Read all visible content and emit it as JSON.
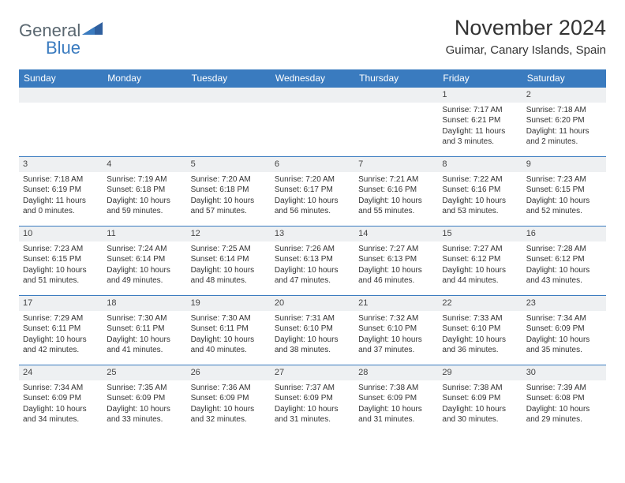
{
  "logo": {
    "text_general": "General",
    "text_blue": "Blue"
  },
  "title": "November 2024",
  "location": "Guimar, Canary Islands, Spain",
  "header_bg": "#3a7bbf",
  "header_fg": "#ffffff",
  "daynum_bg": "#eef0f2",
  "border_color": "#3a7bbf",
  "weekdays": [
    "Sunday",
    "Monday",
    "Tuesday",
    "Wednesday",
    "Thursday",
    "Friday",
    "Saturday"
  ],
  "weeks": [
    [
      {
        "day": "",
        "sunrise": "",
        "sunset": "",
        "daylight": ""
      },
      {
        "day": "",
        "sunrise": "",
        "sunset": "",
        "daylight": ""
      },
      {
        "day": "",
        "sunrise": "",
        "sunset": "",
        "daylight": ""
      },
      {
        "day": "",
        "sunrise": "",
        "sunset": "",
        "daylight": ""
      },
      {
        "day": "",
        "sunrise": "",
        "sunset": "",
        "daylight": ""
      },
      {
        "day": "1",
        "sunrise": "Sunrise: 7:17 AM",
        "sunset": "Sunset: 6:21 PM",
        "daylight": "Daylight: 11 hours and 3 minutes."
      },
      {
        "day": "2",
        "sunrise": "Sunrise: 7:18 AM",
        "sunset": "Sunset: 6:20 PM",
        "daylight": "Daylight: 11 hours and 2 minutes."
      }
    ],
    [
      {
        "day": "3",
        "sunrise": "Sunrise: 7:18 AM",
        "sunset": "Sunset: 6:19 PM",
        "daylight": "Daylight: 11 hours and 0 minutes."
      },
      {
        "day": "4",
        "sunrise": "Sunrise: 7:19 AM",
        "sunset": "Sunset: 6:18 PM",
        "daylight": "Daylight: 10 hours and 59 minutes."
      },
      {
        "day": "5",
        "sunrise": "Sunrise: 7:20 AM",
        "sunset": "Sunset: 6:18 PM",
        "daylight": "Daylight: 10 hours and 57 minutes."
      },
      {
        "day": "6",
        "sunrise": "Sunrise: 7:20 AM",
        "sunset": "Sunset: 6:17 PM",
        "daylight": "Daylight: 10 hours and 56 minutes."
      },
      {
        "day": "7",
        "sunrise": "Sunrise: 7:21 AM",
        "sunset": "Sunset: 6:16 PM",
        "daylight": "Daylight: 10 hours and 55 minutes."
      },
      {
        "day": "8",
        "sunrise": "Sunrise: 7:22 AM",
        "sunset": "Sunset: 6:16 PM",
        "daylight": "Daylight: 10 hours and 53 minutes."
      },
      {
        "day": "9",
        "sunrise": "Sunrise: 7:23 AM",
        "sunset": "Sunset: 6:15 PM",
        "daylight": "Daylight: 10 hours and 52 minutes."
      }
    ],
    [
      {
        "day": "10",
        "sunrise": "Sunrise: 7:23 AM",
        "sunset": "Sunset: 6:15 PM",
        "daylight": "Daylight: 10 hours and 51 minutes."
      },
      {
        "day": "11",
        "sunrise": "Sunrise: 7:24 AM",
        "sunset": "Sunset: 6:14 PM",
        "daylight": "Daylight: 10 hours and 49 minutes."
      },
      {
        "day": "12",
        "sunrise": "Sunrise: 7:25 AM",
        "sunset": "Sunset: 6:14 PM",
        "daylight": "Daylight: 10 hours and 48 minutes."
      },
      {
        "day": "13",
        "sunrise": "Sunrise: 7:26 AM",
        "sunset": "Sunset: 6:13 PM",
        "daylight": "Daylight: 10 hours and 47 minutes."
      },
      {
        "day": "14",
        "sunrise": "Sunrise: 7:27 AM",
        "sunset": "Sunset: 6:13 PM",
        "daylight": "Daylight: 10 hours and 46 minutes."
      },
      {
        "day": "15",
        "sunrise": "Sunrise: 7:27 AM",
        "sunset": "Sunset: 6:12 PM",
        "daylight": "Daylight: 10 hours and 44 minutes."
      },
      {
        "day": "16",
        "sunrise": "Sunrise: 7:28 AM",
        "sunset": "Sunset: 6:12 PM",
        "daylight": "Daylight: 10 hours and 43 minutes."
      }
    ],
    [
      {
        "day": "17",
        "sunrise": "Sunrise: 7:29 AM",
        "sunset": "Sunset: 6:11 PM",
        "daylight": "Daylight: 10 hours and 42 minutes."
      },
      {
        "day": "18",
        "sunrise": "Sunrise: 7:30 AM",
        "sunset": "Sunset: 6:11 PM",
        "daylight": "Daylight: 10 hours and 41 minutes."
      },
      {
        "day": "19",
        "sunrise": "Sunrise: 7:30 AM",
        "sunset": "Sunset: 6:11 PM",
        "daylight": "Daylight: 10 hours and 40 minutes."
      },
      {
        "day": "20",
        "sunrise": "Sunrise: 7:31 AM",
        "sunset": "Sunset: 6:10 PM",
        "daylight": "Daylight: 10 hours and 38 minutes."
      },
      {
        "day": "21",
        "sunrise": "Sunrise: 7:32 AM",
        "sunset": "Sunset: 6:10 PM",
        "daylight": "Daylight: 10 hours and 37 minutes."
      },
      {
        "day": "22",
        "sunrise": "Sunrise: 7:33 AM",
        "sunset": "Sunset: 6:10 PM",
        "daylight": "Daylight: 10 hours and 36 minutes."
      },
      {
        "day": "23",
        "sunrise": "Sunrise: 7:34 AM",
        "sunset": "Sunset: 6:09 PM",
        "daylight": "Daylight: 10 hours and 35 minutes."
      }
    ],
    [
      {
        "day": "24",
        "sunrise": "Sunrise: 7:34 AM",
        "sunset": "Sunset: 6:09 PM",
        "daylight": "Daylight: 10 hours and 34 minutes."
      },
      {
        "day": "25",
        "sunrise": "Sunrise: 7:35 AM",
        "sunset": "Sunset: 6:09 PM",
        "daylight": "Daylight: 10 hours and 33 minutes."
      },
      {
        "day": "26",
        "sunrise": "Sunrise: 7:36 AM",
        "sunset": "Sunset: 6:09 PM",
        "daylight": "Daylight: 10 hours and 32 minutes."
      },
      {
        "day": "27",
        "sunrise": "Sunrise: 7:37 AM",
        "sunset": "Sunset: 6:09 PM",
        "daylight": "Daylight: 10 hours and 31 minutes."
      },
      {
        "day": "28",
        "sunrise": "Sunrise: 7:38 AM",
        "sunset": "Sunset: 6:09 PM",
        "daylight": "Daylight: 10 hours and 31 minutes."
      },
      {
        "day": "29",
        "sunrise": "Sunrise: 7:38 AM",
        "sunset": "Sunset: 6:09 PM",
        "daylight": "Daylight: 10 hours and 30 minutes."
      },
      {
        "day": "30",
        "sunrise": "Sunrise: 7:39 AM",
        "sunset": "Sunset: 6:08 PM",
        "daylight": "Daylight: 10 hours and 29 minutes."
      }
    ]
  ]
}
